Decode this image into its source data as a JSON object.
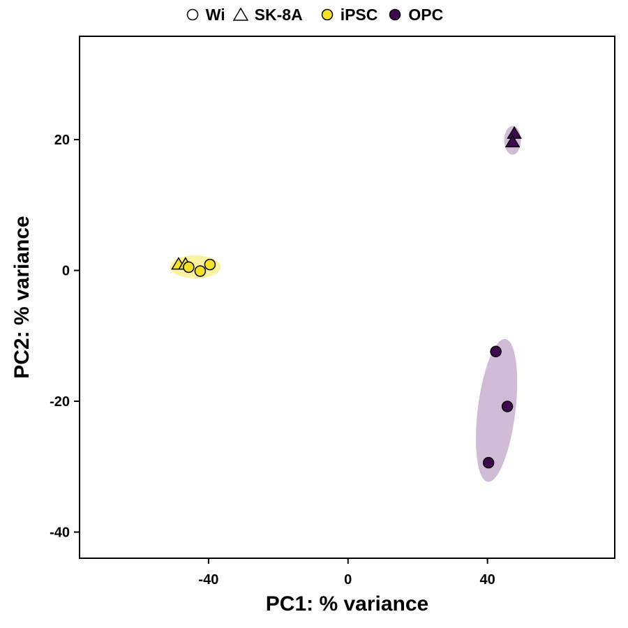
{
  "chart_data": {
    "type": "scatter",
    "xlabel": "PC1: % variance",
    "ylabel": "PC2: % variance",
    "xlim": [
      -77,
      76.5
    ],
    "ylim": [
      -44,
      35.8
    ],
    "xticks": [
      -40,
      0,
      40
    ],
    "yticks": [
      -40,
      -20,
      0,
      20
    ],
    "xtick_labels": [
      "-40",
      "0",
      "40"
    ],
    "ytick_labels": [
      "-40",
      "-20",
      "0",
      "20"
    ],
    "grid": false,
    "legend_position": "top",
    "legend": {
      "shape_entries": [
        {
          "label": "Wi",
          "shape": "circle"
        },
        {
          "label": "SK-8A",
          "shape": "triangle"
        }
      ],
      "color_entries": [
        {
          "label": "iPSC",
          "color": "#F4E12A"
        },
        {
          "label": "OPC",
          "color": "#40084F"
        }
      ]
    },
    "series": [
      {
        "name": "iPSC",
        "color": "#F4E12A",
        "ellipse_color": "#FBF3A0",
        "ellipse": {
          "cx": -43.8,
          "cy": 0.55,
          "rx": 7.3,
          "ry": 1.75,
          "angle_deg": 0
        },
        "points": [
          {
            "x": -48.6,
            "y": 0.9,
            "shape": "triangle"
          },
          {
            "x": -46.6,
            "y": 0.9,
            "shape": "triangle"
          },
          {
            "x": -45.7,
            "y": 0.5,
            "shape": "circle"
          },
          {
            "x": -42.4,
            "y": -0.1,
            "shape": "circle"
          },
          {
            "x": -39.6,
            "y": 0.9,
            "shape": "circle"
          }
        ]
      },
      {
        "name": "OPC",
        "color": "#40084F",
        "ellipse_color": "#D0BCD6",
        "ellipse": [
          {
            "cx": 47.2,
            "cy": 19.9,
            "rx": 2.4,
            "ry": 2.2,
            "angle_deg": 0
          },
          {
            "cx": 42.6,
            "cy": -21.4,
            "rx": 5.4,
            "ry": 11.0,
            "angle_deg": 7
          }
        ],
        "points": [
          {
            "x": 47.7,
            "y": 20.9,
            "shape": "triangle"
          },
          {
            "x": 47.2,
            "y": 19.6,
            "shape": "triangle"
          },
          {
            "x": 42.4,
            "y": -12.4,
            "shape": "circle"
          },
          {
            "x": 45.7,
            "y": -20.8,
            "shape": "circle"
          },
          {
            "x": 40.3,
            "y": -29.4,
            "shape": "circle"
          }
        ]
      }
    ]
  }
}
